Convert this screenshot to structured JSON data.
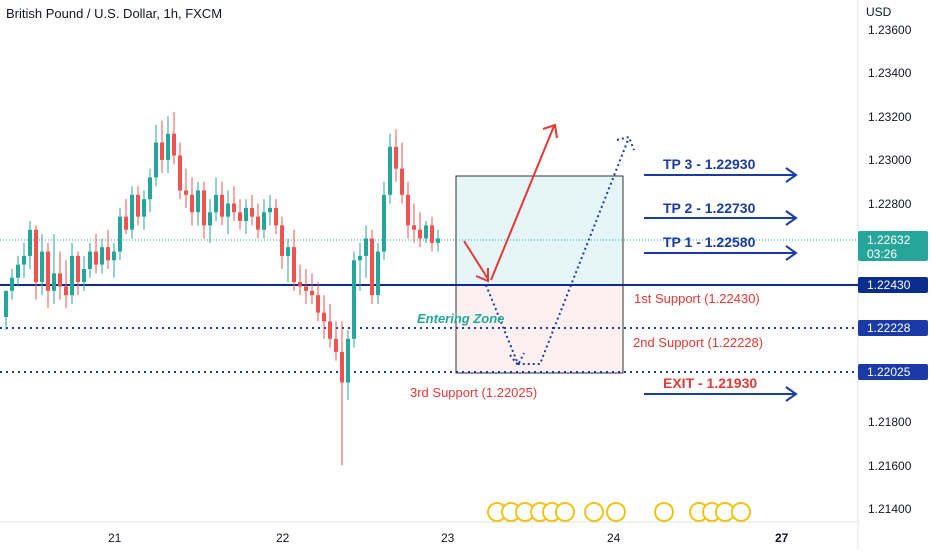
{
  "header": {
    "title": "British Pound / U.S. Dollar, 1h, FXCM"
  },
  "axis": {
    "currency": "USD"
  },
  "colors": {
    "up": "#26a69a",
    "down": "#ef5350",
    "blue": "#1a3aa8",
    "dark_blue": "#0b2e8c",
    "red": "#e53935",
    "zone_top": "#e6f5f8",
    "zone_bottom": "#fdf0f0"
  },
  "chart_data": {
    "type": "candlestick",
    "title": "British Pound / U.S. Dollar, 1h, FXCM",
    "ylabel": "USD",
    "ylim": [
      1.2132,
      1.2362
    ],
    "y_ticks": [
      "1.23600",
      "1.23400",
      "1.23200",
      "1.23000",
      "1.22800",
      "1.21800",
      "1.21600",
      "1.21400"
    ],
    "x_ticks": [
      "21",
      "22",
      "23",
      "24",
      "27"
    ],
    "candles": [
      [
        1.2228,
        1.224,
        1.2222,
        1.224
      ],
      [
        1.224,
        1.225,
        1.2236,
        1.2246
      ],
      [
        1.2246,
        1.2256,
        1.2242,
        1.2252
      ],
      [
        1.2252,
        1.2262,
        1.2246,
        1.2256
      ],
      [
        1.2256,
        1.2272,
        1.225,
        1.2268
      ],
      [
        1.2268,
        1.227,
        1.2236,
        1.2244
      ],
      [
        1.2244,
        1.2266,
        1.2238,
        1.2258
      ],
      [
        1.2258,
        1.2262,
        1.2232,
        1.224
      ],
      [
        1.224,
        1.2266,
        1.2234,
        1.2248
      ],
      [
        1.2248,
        1.2258,
        1.2236,
        1.2242
      ],
      [
        1.2242,
        1.2254,
        1.2232,
        1.2238
      ],
      [
        1.2238,
        1.2262,
        1.2234,
        1.2256
      ],
      [
        1.2256,
        1.2258,
        1.2238,
        1.2244
      ],
      [
        1.2244,
        1.2256,
        1.224,
        1.225
      ],
      [
        1.225,
        1.2262,
        1.2246,
        1.2258
      ],
      [
        1.2258,
        1.2266,
        1.2248,
        1.2252
      ],
      [
        1.2252,
        1.2264,
        1.2248,
        1.226
      ],
      [
        1.226,
        1.2268,
        1.225,
        1.2254
      ],
      [
        1.2254,
        1.2262,
        1.2246,
        1.2258
      ],
      [
        1.2258,
        1.2278,
        1.2254,
        1.2274
      ],
      [
        1.2274,
        1.2282,
        1.2266,
        1.2268
      ],
      [
        1.2268,
        1.2288,
        1.2264,
        1.2284
      ],
      [
        1.2284,
        1.2288,
        1.227,
        1.2274
      ],
      [
        1.2274,
        1.2286,
        1.2268,
        1.2282
      ],
      [
        1.2282,
        1.2296,
        1.2276,
        1.2292
      ],
      [
        1.2292,
        1.2316,
        1.2288,
        1.2308
      ],
      [
        1.2308,
        1.2318,
        1.2294,
        1.23
      ],
      [
        1.23,
        1.232,
        1.2294,
        1.2312
      ],
      [
        1.2312,
        1.2322,
        1.2298,
        1.2302
      ],
      [
        1.2302,
        1.2308,
        1.2282,
        1.2286
      ],
      [
        1.2286,
        1.2296,
        1.2278,
        1.2284
      ],
      [
        1.2284,
        1.2292,
        1.227,
        1.2276
      ],
      [
        1.2276,
        1.229,
        1.227,
        1.2286
      ],
      [
        1.2286,
        1.229,
        1.2264,
        1.227
      ],
      [
        1.227,
        1.2282,
        1.2262,
        1.2276
      ],
      [
        1.2276,
        1.2292,
        1.2272,
        1.2284
      ],
      [
        1.2284,
        1.229,
        1.227,
        1.2274
      ],
      [
        1.2274,
        1.2286,
        1.2266,
        1.228
      ],
      [
        1.228,
        1.2288,
        1.2272,
        1.2276
      ],
      [
        1.2276,
        1.2282,
        1.2268,
        1.2272
      ],
      [
        1.2272,
        1.2282,
        1.2266,
        1.2278
      ],
      [
        1.2278,
        1.2284,
        1.227,
        1.2274
      ],
      [
        1.2274,
        1.228,
        1.2264,
        1.2268
      ],
      [
        1.2268,
        1.2282,
        1.2264,
        1.2276
      ],
      [
        1.2276,
        1.2284,
        1.227,
        1.2278
      ],
      [
        1.2278,
        1.2282,
        1.2266,
        1.227
      ],
      [
        1.227,
        1.2274,
        1.225,
        1.2256
      ],
      [
        1.2256,
        1.2264,
        1.2244,
        1.226
      ],
      [
        1.226,
        1.2268,
        1.224,
        1.2244
      ],
      [
        1.2244,
        1.2252,
        1.2238,
        1.2242
      ],
      [
        1.2242,
        1.225,
        1.2234,
        1.224
      ],
      [
        1.224,
        1.2248,
        1.2234,
        1.2238
      ],
      [
        1.2238,
        1.2244,
        1.2226,
        1.223
      ],
      [
        1.223,
        1.2238,
        1.2218,
        1.2226
      ],
      [
        1.2226,
        1.2234,
        1.2214,
        1.2218
      ],
      [
        1.2218,
        1.2226,
        1.2208,
        1.2212
      ],
      [
        1.2212,
        1.2226,
        1.216,
        1.2198
      ],
      [
        1.2198,
        1.2222,
        1.219,
        1.2218
      ],
      [
        1.2218,
        1.2258,
        1.2214,
        1.2254
      ],
      [
        1.2254,
        1.2262,
        1.224,
        1.2256
      ],
      [
        1.2256,
        1.227,
        1.2246,
        1.2264
      ],
      [
        1.2264,
        1.2268,
        1.2234,
        1.2238
      ],
      [
        1.2238,
        1.2262,
        1.2234,
        1.2258
      ],
      [
        1.2258,
        1.229,
        1.2254,
        1.2284
      ],
      [
        1.2284,
        1.2312,
        1.228,
        1.2306
      ],
      [
        1.2306,
        1.2314,
        1.229,
        1.2296
      ],
      [
        1.2296,
        1.2308,
        1.228,
        1.2284
      ],
      [
        1.2284,
        1.229,
        1.2264,
        1.227
      ],
      [
        1.227,
        1.228,
        1.2262,
        1.2268
      ],
      [
        1.2268,
        1.2276,
        1.226,
        1.2264
      ],
      [
        1.2264,
        1.2272,
        1.2262,
        1.227
      ],
      [
        1.227,
        1.2274,
        1.2258,
        1.2262
      ],
      [
        1.2262,
        1.2268,
        1.2258,
        1.2264
      ]
    ],
    "levels": [
      {
        "name": "1st Support (1.22430)",
        "value": 1.2243,
        "style": "solid",
        "badge": "1.22430"
      },
      {
        "name": "2nd Support (1.22228)",
        "value": 1.22228,
        "style": "dotted",
        "badge": "1.22228"
      },
      {
        "name": "3rd Support (1.22025)",
        "value": 1.22025,
        "style": "dotted",
        "badge": "1.22025"
      }
    ],
    "current_price": {
      "price": "1.22632",
      "countdown": "03:26",
      "value": 1.22632
    },
    "targets": [
      {
        "label": "TP 3 - 1.22930",
        "value": 1.2293
      },
      {
        "label": "TP 2 - 1.22730",
        "value": 1.2273
      },
      {
        "label": "TP 1 - 1.22580",
        "value": 1.2258
      },
      {
        "label": "EXIT - 1.21930",
        "value": 1.2193
      }
    ],
    "annotations": {
      "entering_zone": "Entering Zone"
    },
    "zone": {
      "top": 1.2293,
      "mid": 1.2243,
      "bottom": 1.22025
    }
  }
}
